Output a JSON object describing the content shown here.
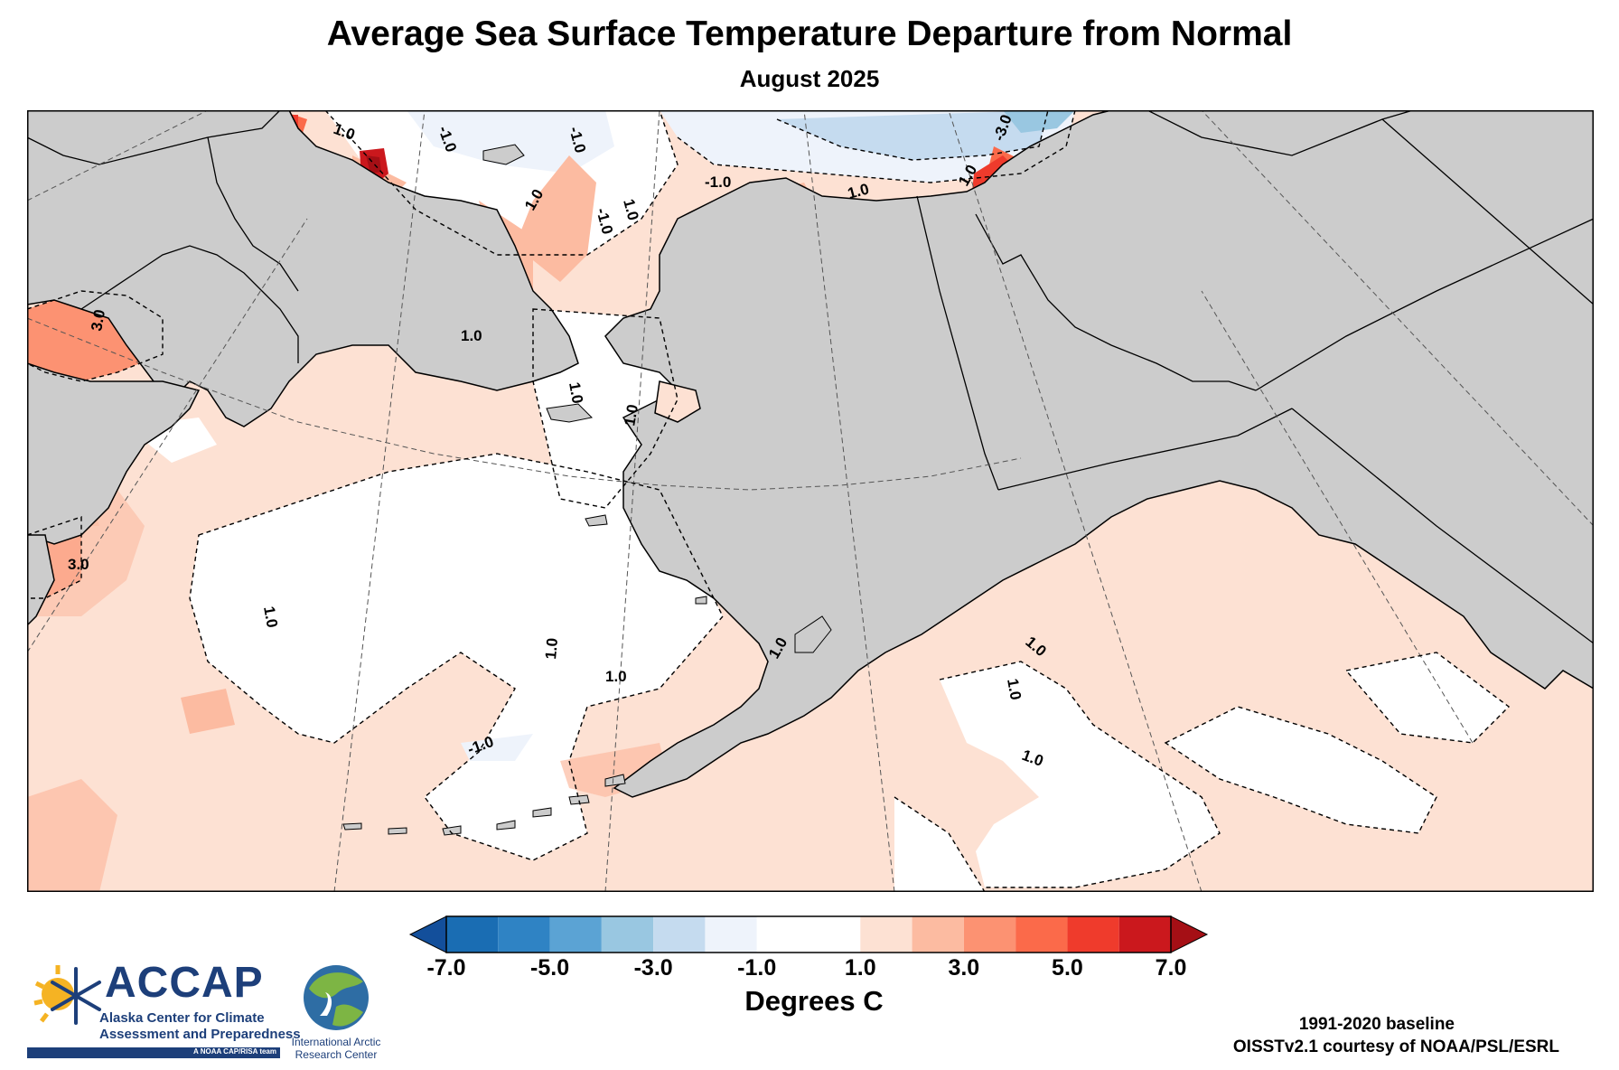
{
  "header": {
    "title": "Average Sea Surface Temperature Departure from Normal",
    "subtitle": "August 2025"
  },
  "map": {
    "contour_labels": [
      {
        "text": "1.0",
        "id": "chukchi-north"
      },
      {
        "text": "-1.0",
        "id": "arctic-north-1"
      },
      {
        "text": "-1.0",
        "id": "arctic-north-2"
      },
      {
        "text": "-3.0",
        "id": "beaufort-ice-edge"
      },
      {
        "text": "1.0",
        "id": "chukchi-center"
      },
      {
        "text": "-1.0",
        "id": "chukchi-cold-patch"
      },
      {
        "text": "1.0",
        "id": "chukchi-patch"
      },
      {
        "text": "-1.0",
        "id": "beaufort-west"
      },
      {
        "text": "1.0",
        "id": "beaufort-coast"
      },
      {
        "text": "1.0",
        "id": "beaufort-east"
      },
      {
        "text": "3.0",
        "id": "okhotsk-north"
      },
      {
        "text": "1.0",
        "id": "anadyr-gulf"
      },
      {
        "text": "1.0",
        "id": "bering-strait"
      },
      {
        "text": "1.0",
        "id": "norton-sound"
      },
      {
        "text": "3.0",
        "id": "kamchatka-east"
      },
      {
        "text": "1.0",
        "id": "western-bering"
      },
      {
        "text": "1.0",
        "id": "central-bering"
      },
      {
        "text": "1.0",
        "id": "bristol-bay"
      },
      {
        "text": "-1.0",
        "id": "aleutians"
      },
      {
        "text": "1.0",
        "id": "kodiak"
      },
      {
        "text": "1.0",
        "id": "gulf-of-alaska-1"
      },
      {
        "text": "1.0",
        "id": "gulf-of-alaska-2"
      },
      {
        "text": "1.0",
        "id": "gulf-of-alaska-3"
      }
    ],
    "land_color": "#cccccc",
    "ocean_normal_color": "#ffffff"
  },
  "colorbar": {
    "ticks": [
      "-7.0",
      "-5.0",
      "-3.0",
      "-1.0",
      "1.0",
      "3.0",
      "5.0",
      "7.0"
    ],
    "bins": [
      {
        "range": "-7 to -6",
        "color": "#1a6db3"
      },
      {
        "range": "-6 to -5",
        "color": "#2f83c4"
      },
      {
        "range": "-5 to -4",
        "color": "#5ba3d4"
      },
      {
        "range": "-4 to -3",
        "color": "#99c7e1"
      },
      {
        "range": "-3 to -2",
        "color": "#c5dbef"
      },
      {
        "range": "-2 to -1",
        "color": "#eef3fb"
      },
      {
        "range": "-1 to 1",
        "color": "#ffffff"
      },
      {
        "range": "1 to 2",
        "color": "#fde1d3"
      },
      {
        "range": "2 to 3",
        "color": "#fcbba1"
      },
      {
        "range": "3 to 4",
        "color": "#fc9272"
      },
      {
        "range": "4 to 5",
        "color": "#fb6a4a"
      },
      {
        "range": "5 to 6",
        "color": "#ef3b2c"
      },
      {
        "range": "6 to 7",
        "color": "#cb181d"
      }
    ],
    "under_color": "#134f9b",
    "over_color": "#a50f15",
    "units": "Degrees C"
  },
  "footer": {
    "baseline": "1991-2020 baseline",
    "credit": "OISSTv2.1 courtesy of NOAA/PSL/ESRL"
  },
  "logos": {
    "accap": {
      "name": "ACCAP",
      "line1": "Alaska Center for Climate",
      "line2": "Assessment and Preparedness",
      "tagline": "A NOAA CAP/RISA team"
    },
    "iarc": {
      "line1": "International Arctic",
      "line2": "Research Center"
    }
  }
}
